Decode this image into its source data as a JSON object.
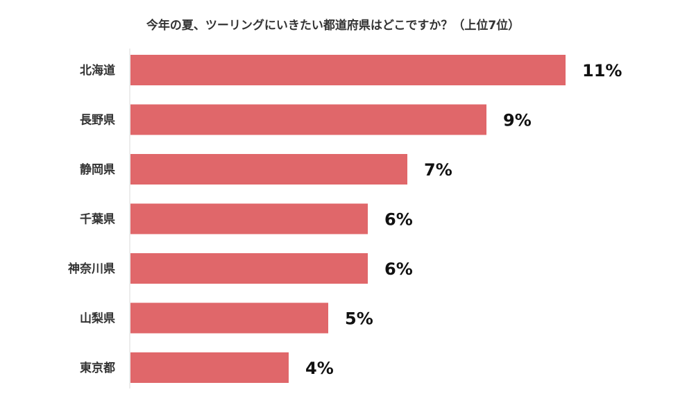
{
  "chart_data": {
    "type": "bar",
    "orientation": "horizontal",
    "title": "今年の夏、ツーリングにいきたい都道府県はどこですか？（上位7位）",
    "categories": [
      "北海道",
      "長野県",
      "静岡県",
      "千葉県",
      "神奈川県",
      "山梨県",
      "東京都"
    ],
    "values": [
      11,
      9,
      7,
      6,
      6,
      5,
      4
    ],
    "value_labels": [
      "11%",
      "9%",
      "7%",
      "6%",
      "6%",
      "5%",
      "4%"
    ],
    "unit": "%",
    "bar_color": "#E0676A",
    "grid": false,
    "legend": "none"
  }
}
